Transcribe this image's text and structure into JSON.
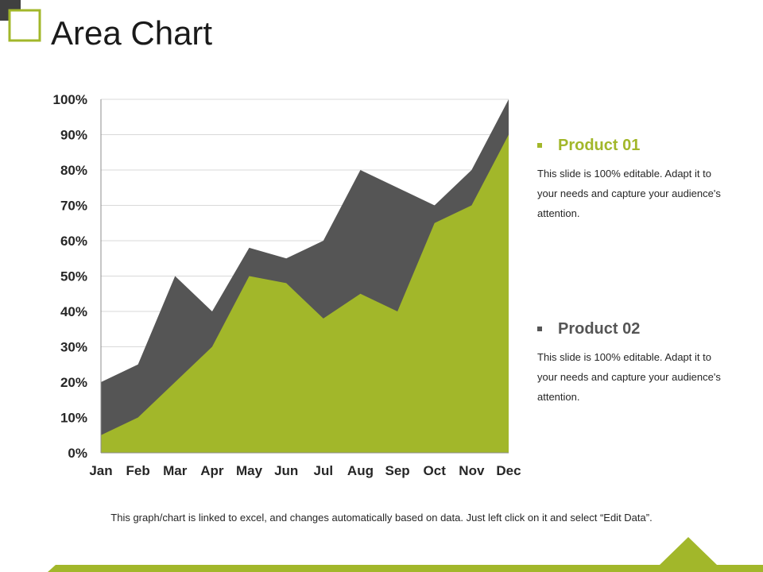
{
  "header": {
    "title": "Area Chart"
  },
  "colors": {
    "accent": "#a2b72a",
    "dark": "#555555",
    "grid": "#d9d9d9",
    "axis": "#8c8c8c",
    "logo_dark": "#404040"
  },
  "legend": [
    {
      "name": "Product 01",
      "color": "#a2b72a",
      "description": "This slide is 100% editable. Adapt it to your needs and capture your audience's attention."
    },
    {
      "name": "Product 02",
      "color": "#555555",
      "description": "This slide is 100% editable. Adapt it to your needs and capture your audience's attention."
    }
  ],
  "footnote": "This graph/chart is linked to excel, and changes automatically based on data. Just left click on it and select “Edit Data”.",
  "chart_data": {
    "type": "area",
    "categories": [
      "Jan",
      "Feb",
      "Mar",
      "Apr",
      "May",
      "Jun",
      "Jul",
      "Aug",
      "Sep",
      "Oct",
      "Nov",
      "Dec"
    ],
    "series": [
      {
        "name": "Product 02",
        "values": [
          20,
          25,
          50,
          40,
          58,
          55,
          60,
          80,
          75,
          70,
          80,
          100
        ]
      },
      {
        "name": "Product 01",
        "values": [
          5,
          10,
          20,
          30,
          50,
          48,
          38,
          45,
          40,
          65,
          70,
          90
        ]
      }
    ],
    "y_ticks": [
      "0%",
      "10%",
      "20%",
      "30%",
      "40%",
      "50%",
      "60%",
      "70%",
      "80%",
      "90%",
      "100%"
    ],
    "ylim": [
      0,
      100
    ],
    "grid": true,
    "legend_position": "right"
  }
}
